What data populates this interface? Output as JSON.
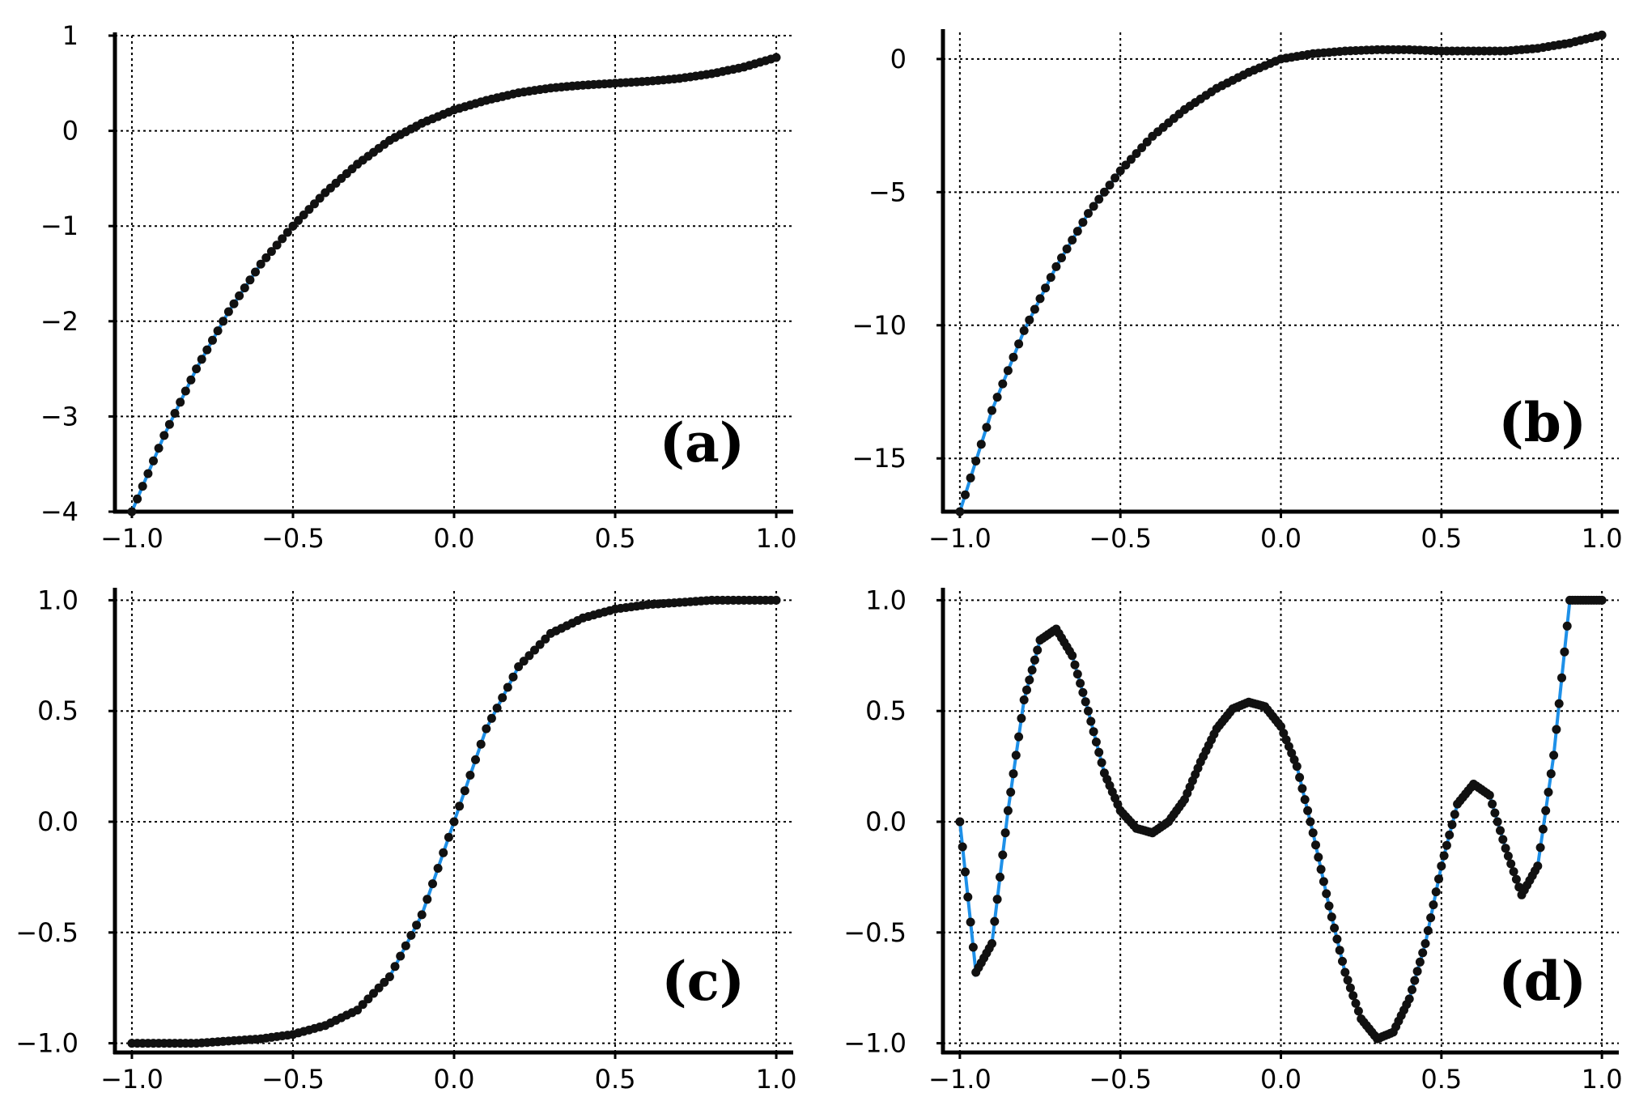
{
  "colors": {
    "fit_line": "#1e90e8",
    "points": "#111111",
    "axes": "#000000"
  },
  "chart_data": [
    {
      "panel": "a",
      "type": "scatter",
      "label": "(a)",
      "xlim": [
        -1.0,
        1.0
      ],
      "ylim": [
        -4,
        1
      ],
      "xticks": [
        -1.0,
        -0.5,
        0.0,
        0.5,
        1.0
      ],
      "xtick_labels": [
        "−1.0",
        "−0.5",
        "0.0",
        "0.5",
        "1.0"
      ],
      "yticks": [
        1,
        0,
        -1,
        -2,
        -3,
        -4
      ],
      "ytick_labels": [
        "1",
        "0",
        "−1",
        "−2",
        "−3",
        "−4"
      ],
      "grid": true,
      "series": [
        {
          "kind": "line",
          "x": [
            -1.0,
            -0.9,
            -0.8,
            -0.7,
            -0.6,
            -0.5,
            -0.4,
            -0.3,
            -0.2,
            -0.1,
            0.0,
            0.1,
            0.2,
            0.3,
            0.4,
            0.5,
            0.6,
            0.7,
            0.8,
            0.9,
            1.0
          ],
          "y": [
            -4.0,
            -3.2,
            -2.5,
            -1.9,
            -1.4,
            -1.0,
            -0.65,
            -0.35,
            -0.1,
            0.08,
            0.22,
            0.32,
            0.4,
            0.45,
            0.48,
            0.5,
            0.52,
            0.55,
            0.6,
            0.67,
            0.77
          ]
        },
        {
          "kind": "points",
          "x": [
            -1.0,
            -0.9,
            -0.8,
            -0.7,
            -0.6,
            -0.5,
            -0.4,
            -0.3,
            -0.2,
            -0.1,
            0.0,
            0.1,
            0.2,
            0.3,
            0.4,
            0.5,
            0.6,
            0.7,
            0.8,
            0.9,
            1.0
          ],
          "y": [
            -4.0,
            -3.2,
            -2.5,
            -1.9,
            -1.4,
            -1.0,
            -0.65,
            -0.35,
            -0.1,
            0.08,
            0.22,
            0.32,
            0.4,
            0.45,
            0.48,
            0.5,
            0.52,
            0.55,
            0.6,
            0.67,
            0.77
          ]
        }
      ]
    },
    {
      "panel": "b",
      "type": "scatter",
      "label": "(b)",
      "xlim": [
        -1.0,
        1.0
      ],
      "ylim": [
        -17,
        1
      ],
      "xticks": [
        -1.0,
        -0.5,
        0.0,
        0.5,
        1.0
      ],
      "xtick_labels": [
        "−1.0",
        "−0.5",
        "0.0",
        "0.5",
        "1.0"
      ],
      "yticks": [
        0,
        -5,
        -10,
        -15
      ],
      "ytick_labels": [
        "0",
        "−5",
        "−10",
        "−15"
      ],
      "grid": true,
      "series": [
        {
          "kind": "line",
          "x": [
            -1.0,
            -0.9,
            -0.8,
            -0.7,
            -0.6,
            -0.5,
            -0.4,
            -0.3,
            -0.2,
            -0.1,
            0.0,
            0.1,
            0.2,
            0.3,
            0.4,
            0.5,
            0.6,
            0.7,
            0.8,
            0.9,
            1.0
          ],
          "y": [
            -17.0,
            -13.2,
            -10.2,
            -7.8,
            -5.8,
            -4.2,
            -2.9,
            -1.9,
            -1.1,
            -0.5,
            0.0,
            0.2,
            0.3,
            0.35,
            0.35,
            0.3,
            0.3,
            0.3,
            0.4,
            0.6,
            0.9
          ]
        },
        {
          "kind": "points",
          "x": [
            -1.0,
            -0.9,
            -0.8,
            -0.7,
            -0.6,
            -0.5,
            -0.4,
            -0.3,
            -0.2,
            -0.1,
            0.0,
            0.1,
            0.2,
            0.3,
            0.4,
            0.5,
            0.6,
            0.7,
            0.8,
            0.9,
            1.0
          ],
          "y": [
            -17.0,
            -13.2,
            -10.2,
            -7.8,
            -5.8,
            -4.2,
            -2.9,
            -1.9,
            -1.1,
            -0.5,
            0.0,
            0.2,
            0.3,
            0.35,
            0.35,
            0.3,
            0.3,
            0.3,
            0.4,
            0.6,
            0.9
          ]
        }
      ]
    },
    {
      "panel": "c",
      "type": "scatter",
      "label": "(c)",
      "xlim": [
        -1.0,
        1.0
      ],
      "ylim": [
        -1.0,
        1.0
      ],
      "xticks": [
        -1.0,
        -0.5,
        0.0,
        0.5,
        1.0
      ],
      "xtick_labels": [
        "−1.0",
        "−0.5",
        "0.0",
        "0.5",
        "1.0"
      ],
      "yticks": [
        1.0,
        0.5,
        0.0,
        -0.5,
        -1.0
      ],
      "ytick_labels": [
        "1.0",
        "0.5",
        "0.0",
        "−0.5",
        "−1.0"
      ],
      "grid": true,
      "series": [
        {
          "kind": "line",
          "x": [
            -1.0,
            -0.9,
            -0.8,
            -0.7,
            -0.6,
            -0.5,
            -0.4,
            -0.3,
            -0.2,
            -0.1,
            0.0,
            0.1,
            0.2,
            0.3,
            0.4,
            0.5,
            0.6,
            0.7,
            0.8,
            0.9,
            1.0
          ],
          "y": [
            -1.0,
            -1.0,
            -1.0,
            -0.99,
            -0.98,
            -0.96,
            -0.92,
            -0.85,
            -0.7,
            -0.42,
            0.0,
            0.42,
            0.7,
            0.85,
            0.92,
            0.96,
            0.98,
            0.99,
            1.0,
            1.0,
            1.0
          ]
        },
        {
          "kind": "points",
          "x": [
            -1.0,
            -0.9,
            -0.8,
            -0.7,
            -0.6,
            -0.5,
            -0.4,
            -0.3,
            -0.2,
            -0.1,
            0.0,
            0.1,
            0.2,
            0.3,
            0.4,
            0.5,
            0.6,
            0.7,
            0.8,
            0.9,
            1.0
          ],
          "y": [
            -1.0,
            -1.0,
            -1.0,
            -0.99,
            -0.98,
            -0.96,
            -0.92,
            -0.85,
            -0.7,
            -0.42,
            0.0,
            0.42,
            0.7,
            0.85,
            0.92,
            0.96,
            0.98,
            0.99,
            1.0,
            1.0,
            1.0
          ]
        }
      ]
    },
    {
      "panel": "d",
      "type": "scatter",
      "label": "(d)",
      "xlim": [
        -1.0,
        1.0
      ],
      "ylim": [
        -1.0,
        1.0
      ],
      "xticks": [
        -1.0,
        -0.5,
        0.0,
        0.5,
        1.0
      ],
      "xtick_labels": [
        "−1.0",
        "−0.5",
        "0.0",
        "0.5",
        "1.0"
      ],
      "yticks": [
        1.0,
        0.5,
        0.0,
        -0.5,
        -1.0
      ],
      "ytick_labels": [
        "1.0",
        "0.5",
        "0.0",
        "−0.5",
        "−1.0"
      ],
      "grid": true,
      "series": [
        {
          "kind": "line",
          "x": [
            -1.0,
            -0.95,
            -0.9,
            -0.85,
            -0.8,
            -0.75,
            -0.7,
            -0.65,
            -0.6,
            -0.55,
            -0.5,
            -0.45,
            -0.4,
            -0.35,
            -0.3,
            -0.25,
            -0.2,
            -0.15,
            -0.1,
            -0.05,
            0.0,
            0.05,
            0.1,
            0.15,
            0.2,
            0.25,
            0.3,
            0.35,
            0.4,
            0.45,
            0.5,
            0.55,
            0.6,
            0.65,
            0.7,
            0.75,
            0.8,
            0.85,
            0.9,
            0.95,
            1.0
          ],
          "y": [
            0.0,
            -0.68,
            -0.55,
            0.05,
            0.55,
            0.82,
            0.87,
            0.75,
            0.5,
            0.22,
            0.05,
            -0.03,
            -0.05,
            0.0,
            0.1,
            0.27,
            0.42,
            0.51,
            0.54,
            0.52,
            0.43,
            0.25,
            -0.05,
            -0.38,
            -0.68,
            -0.89,
            -0.98,
            -0.95,
            -0.8,
            -0.55,
            -0.2,
            0.08,
            0.17,
            0.12,
            -0.12,
            -0.33,
            -0.2,
            0.3,
            1.0,
            1.0,
            1.0
          ]
        },
        {
          "kind": "points",
          "x": [
            -1.0,
            -0.95,
            -0.9,
            -0.85,
            -0.8,
            -0.75,
            -0.7,
            -0.65,
            -0.6,
            -0.55,
            -0.5,
            -0.45,
            -0.4,
            -0.35,
            -0.3,
            -0.25,
            -0.2,
            -0.15,
            -0.1,
            -0.05,
            0.0,
            0.05,
            0.1,
            0.15,
            0.2,
            0.25,
            0.3,
            0.35,
            0.4,
            0.45,
            0.5,
            0.55,
            0.6,
            0.65,
            0.7,
            0.75,
            0.8,
            0.85,
            0.9,
            0.95,
            1.0
          ],
          "y": [
            0.0,
            -0.68,
            -0.55,
            0.05,
            0.55,
            0.82,
            0.87,
            0.75,
            0.5,
            0.22,
            0.05,
            -0.03,
            -0.05,
            0.0,
            0.1,
            0.27,
            0.42,
            0.51,
            0.54,
            0.52,
            0.43,
            0.25,
            -0.05,
            -0.38,
            -0.68,
            -0.89,
            -0.98,
            -0.95,
            -0.8,
            -0.55,
            -0.2,
            0.08,
            0.17,
            0.12,
            -0.12,
            -0.33,
            -0.2,
            0.3,
            1.0,
            1.0,
            1.0
          ]
        }
      ]
    }
  ]
}
